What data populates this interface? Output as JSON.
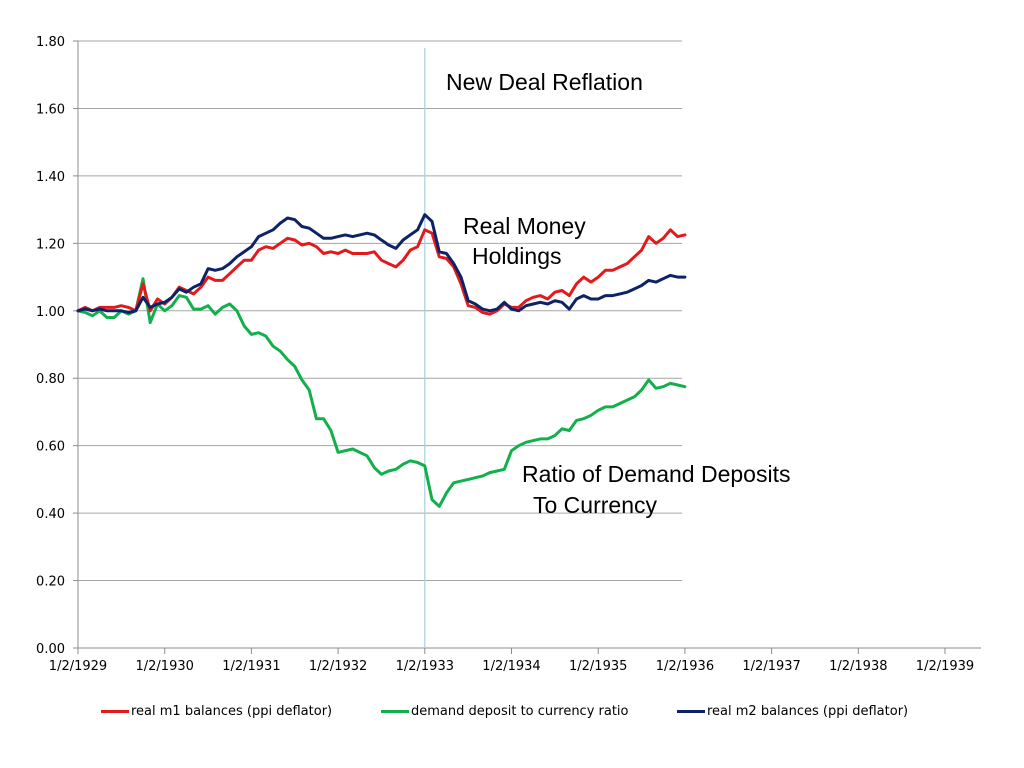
{
  "chart_data": {
    "type": "line",
    "title": "",
    "xlabel": "",
    "ylabel": "",
    "ylim": [
      0,
      1.8
    ],
    "y_ticks": [
      "0.00",
      "0.20",
      "0.40",
      "0.60",
      "0.80",
      "1.00",
      "1.20",
      "1.40",
      "1.60",
      "1.80"
    ],
    "x_ticks": [
      "1/2/1929",
      "1/2/1930",
      "1/2/1931",
      "1/2/1932",
      "1/2/1933",
      "1/2/1934",
      "1/2/1935",
      "1/2/1936",
      "1/2/1937",
      "1/2/1938",
      "1/2/1939"
    ],
    "x_unit": "years since 1/2/1929",
    "xlim": [
      0,
      10.4
    ],
    "grid": "horizontal",
    "legend_position": "bottom",
    "vertical_marker_x": 4.0,
    "annotations": [
      {
        "text": "New Deal Reflation"
      },
      {
        "text": "Real Money"
      },
      {
        "text": "Holdings"
      },
      {
        "text": "Ratio of Demand Deposits"
      },
      {
        "text": "To Currency"
      }
    ],
    "series": [
      {
        "name": "real m1 balances (ppi deflator)",
        "color": "#e31a1c",
        "x": [
          0,
          0.083,
          0.167,
          0.25,
          0.333,
          0.417,
          0.5,
          0.583,
          0.667,
          0.75,
          0.833,
          0.917,
          1.0,
          1.083,
          1.167,
          1.25,
          1.333,
          1.417,
          1.5,
          1.583,
          1.667,
          1.75,
          1.833,
          1.917,
          2.0,
          2.083,
          2.167,
          2.25,
          2.333,
          2.417,
          2.5,
          2.583,
          2.667,
          2.75,
          2.833,
          2.917,
          3.0,
          3.083,
          3.167,
          3.25,
          3.333,
          3.417,
          3.5,
          3.583,
          3.667,
          3.75,
          3.833,
          3.917,
          4.0,
          4.083,
          4.167,
          4.25,
          4.333,
          4.417,
          4.5,
          4.583,
          4.667,
          4.75,
          4.833,
          4.917,
          5.0,
          5.083,
          5.167,
          5.25,
          5.333,
          5.417,
          5.5,
          5.583,
          5.667,
          5.75,
          5.833,
          5.917,
          6.0,
          6.083,
          6.167,
          6.25,
          6.333,
          6.417,
          6.5,
          6.583,
          6.667,
          6.75,
          6.833,
          6.917,
          7.0
        ],
        "y": [
          1.0,
          1.01,
          1.0,
          1.01,
          1.01,
          1.01,
          1.015,
          1.01,
          1.0,
          1.08,
          1.0,
          1.035,
          1.02,
          1.04,
          1.07,
          1.06,
          1.05,
          1.07,
          1.1,
          1.09,
          1.09,
          1.11,
          1.13,
          1.15,
          1.15,
          1.18,
          1.19,
          1.185,
          1.2,
          1.215,
          1.21,
          1.195,
          1.2,
          1.19,
          1.17,
          1.175,
          1.17,
          1.18,
          1.17,
          1.17,
          1.17,
          1.175,
          1.15,
          1.14,
          1.13,
          1.15,
          1.18,
          1.19,
          1.24,
          1.23,
          1.16,
          1.155,
          1.13,
          1.08,
          1.015,
          1.01,
          0.995,
          0.99,
          1.0,
          1.02,
          1.01,
          1.01,
          1.03,
          1.04,
          1.045,
          1.035,
          1.055,
          1.06,
          1.045,
          1.08,
          1.1,
          1.085,
          1.1,
          1.12,
          1.12,
          1.13,
          1.14,
          1.16,
          1.18,
          1.22,
          1.2,
          1.215,
          1.24,
          1.22,
          1.225
        ]
      },
      {
        "name": "demand deposit to currency ratio",
        "color": "#12b04c",
        "x": [
          0,
          0.083,
          0.167,
          0.25,
          0.333,
          0.417,
          0.5,
          0.583,
          0.667,
          0.75,
          0.833,
          0.917,
          1.0,
          1.083,
          1.167,
          1.25,
          1.333,
          1.417,
          1.5,
          1.583,
          1.667,
          1.75,
          1.833,
          1.917,
          2.0,
          2.083,
          2.167,
          2.25,
          2.333,
          2.417,
          2.5,
          2.583,
          2.667,
          2.75,
          2.833,
          2.917,
          3.0,
          3.083,
          3.167,
          3.25,
          3.333,
          3.417,
          3.5,
          3.583,
          3.667,
          3.75,
          3.833,
          3.917,
          4.0,
          4.083,
          4.167,
          4.25,
          4.333,
          4.417,
          4.5,
          4.583,
          4.667,
          4.75,
          4.833,
          4.917,
          5.0,
          5.083,
          5.167,
          5.25,
          5.333,
          5.417,
          5.5,
          5.583,
          5.667,
          5.75,
          5.833,
          5.917,
          6.0,
          6.083,
          6.167,
          6.25,
          6.333,
          6.417,
          6.5,
          6.583,
          6.667,
          6.75,
          6.833,
          6.917,
          7.0
        ],
        "y": [
          1.0,
          0.995,
          0.985,
          1.0,
          0.98,
          0.98,
          1.0,
          0.99,
          1.0,
          1.095,
          0.965,
          1.02,
          1.0,
          1.015,
          1.045,
          1.04,
          1.005,
          1.005,
          1.015,
          0.99,
          1.01,
          1.02,
          1.0,
          0.955,
          0.93,
          0.935,
          0.925,
          0.895,
          0.88,
          0.855,
          0.835,
          0.795,
          0.765,
          0.68,
          0.68,
          0.645,
          0.58,
          0.585,
          0.59,
          0.58,
          0.57,
          0.535,
          0.515,
          0.525,
          0.53,
          0.545,
          0.555,
          0.55,
          0.54,
          0.44,
          0.42,
          0.46,
          0.49,
          0.495,
          0.5,
          0.505,
          0.51,
          0.52,
          0.525,
          0.53,
          0.585,
          0.6,
          0.61,
          0.615,
          0.62,
          0.62,
          0.63,
          0.65,
          0.645,
          0.675,
          0.68,
          0.69,
          0.705,
          0.715,
          0.715,
          0.725,
          0.735,
          0.745,
          0.765,
          0.795,
          0.77,
          0.775,
          0.785,
          0.78,
          0.775
        ]
      },
      {
        "name": "real m2 balances (ppi deflator)",
        "color": "#0d2366",
        "x": [
          0,
          0.083,
          0.167,
          0.25,
          0.333,
          0.417,
          0.5,
          0.583,
          0.667,
          0.75,
          0.833,
          0.917,
          1.0,
          1.083,
          1.167,
          1.25,
          1.333,
          1.417,
          1.5,
          1.583,
          1.667,
          1.75,
          1.833,
          1.917,
          2.0,
          2.083,
          2.167,
          2.25,
          2.333,
          2.417,
          2.5,
          2.583,
          2.667,
          2.75,
          2.833,
          2.917,
          3.0,
          3.083,
          3.167,
          3.25,
          3.333,
          3.417,
          3.5,
          3.583,
          3.667,
          3.75,
          3.833,
          3.917,
          4.0,
          4.083,
          4.167,
          4.25,
          4.333,
          4.417,
          4.5,
          4.583,
          4.667,
          4.75,
          4.833,
          4.917,
          5.0,
          5.083,
          5.167,
          5.25,
          5.333,
          5.417,
          5.5,
          5.583,
          5.667,
          5.75,
          5.833,
          5.917,
          6.0,
          6.083,
          6.167,
          6.25,
          6.333,
          6.417,
          6.5,
          6.583,
          6.667,
          6.75,
          6.833,
          6.917,
          7.0
        ],
        "y": [
          1.0,
          1.005,
          1.0,
          1.005,
          1.0,
          1.0,
          1.0,
          0.995,
          1.0,
          1.04,
          1.01,
          1.02,
          1.025,
          1.04,
          1.065,
          1.055,
          1.07,
          1.08,
          1.125,
          1.12,
          1.125,
          1.14,
          1.16,
          1.175,
          1.19,
          1.22,
          1.23,
          1.24,
          1.26,
          1.275,
          1.27,
          1.25,
          1.245,
          1.23,
          1.215,
          1.215,
          1.22,
          1.225,
          1.22,
          1.225,
          1.23,
          1.225,
          1.21,
          1.195,
          1.185,
          1.21,
          1.225,
          1.24,
          1.285,
          1.265,
          1.175,
          1.17,
          1.14,
          1.1,
          1.03,
          1.02,
          1.005,
          1.0,
          1.005,
          1.025,
          1.005,
          1.0,
          1.015,
          1.02,
          1.025,
          1.02,
          1.03,
          1.025,
          1.005,
          1.035,
          1.045,
          1.035,
          1.035,
          1.045,
          1.045,
          1.05,
          1.055,
          1.065,
          1.075,
          1.09,
          1.085,
          1.095,
          1.105,
          1.1,
          1.1
        ]
      }
    ]
  }
}
